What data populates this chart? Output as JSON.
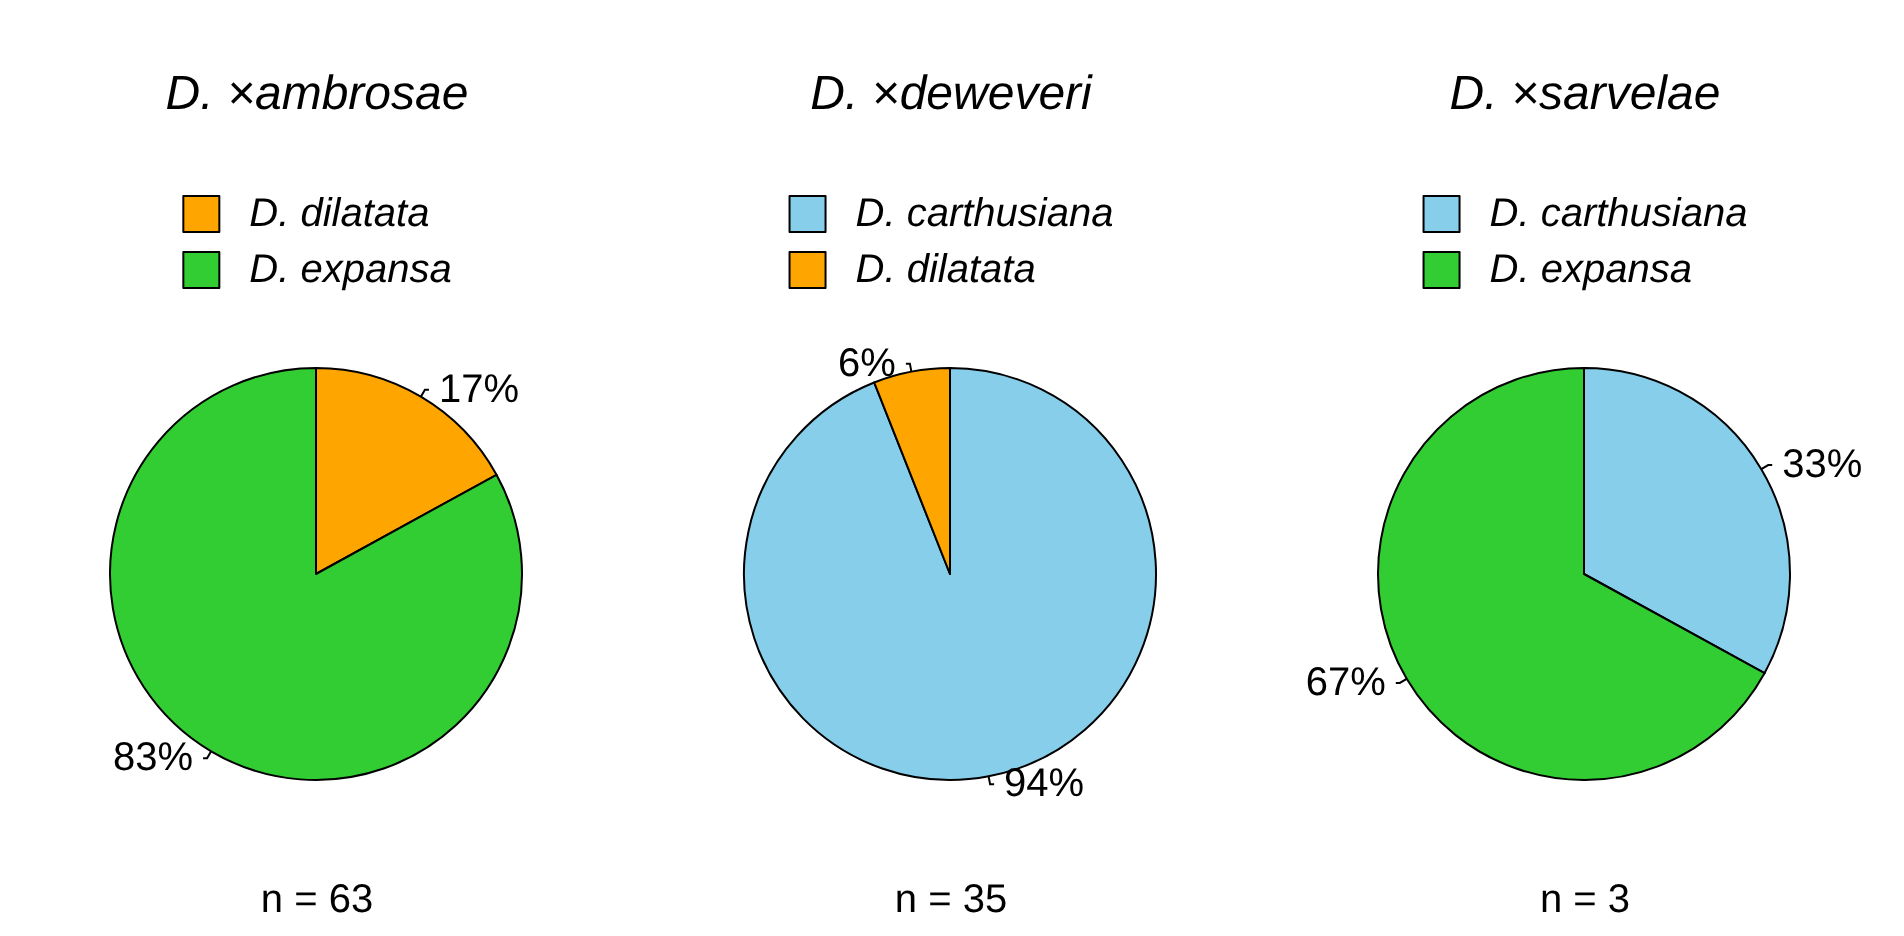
{
  "chart_data": [
    {
      "type": "pie",
      "title": "D. ×ambrosae",
      "categories": [
        "D. dilatata",
        "D. expansa"
      ],
      "values": [
        17,
        83
      ],
      "colors": [
        "#ffa500",
        "#32cd32"
      ],
      "value_labels": [
        "17%",
        "83%"
      ],
      "legend": "top",
      "annotations": [
        "n = 63"
      ]
    },
    {
      "type": "pie",
      "title": "D. ×deweveri",
      "categories": [
        "D. carthusiana",
        "D. dilatata"
      ],
      "values": [
        94,
        6
      ],
      "colors": [
        "#87ceeb",
        "#ffa500"
      ],
      "value_labels": [
        "94%",
        "6%"
      ],
      "legend": "top",
      "annotations": [
        "n = 35"
      ]
    },
    {
      "type": "pie",
      "title": "D. ×sarvelae",
      "categories": [
        "D. carthusiana",
        "D. expansa"
      ],
      "values": [
        33,
        67
      ],
      "colors": [
        "#87ceeb",
        "#32cd32"
      ],
      "value_labels": [
        "33%",
        "67%"
      ],
      "legend": "top",
      "annotations": [
        "n = 3"
      ]
    }
  ]
}
